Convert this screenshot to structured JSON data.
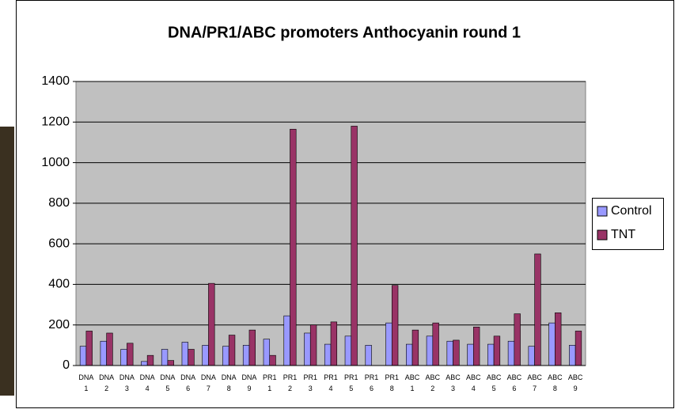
{
  "chart_data": {
    "type": "bar",
    "title": "DNA/PR1/ABC promoters Anthocyanin round 1",
    "categories": [
      "DNA 1",
      "DNA 2",
      "DNA 3",
      "DNA 4",
      "DNA 5",
      "DNA 6",
      "DNA 7",
      "DNA 8",
      "DNA 9",
      "PR1 1",
      "PR1 2",
      "PR1 3",
      "PR1 4",
      "PR1 5",
      "PR1 6",
      "PR1 8",
      "ABC 1",
      "ABC 2",
      "ABC 3",
      "ABC 4",
      "ABC 5",
      "ABC 6",
      "ABC 7",
      "ABC 8",
      "ABC 9"
    ],
    "series": [
      {
        "name": "Control",
        "color": "#9999ff",
        "values": [
          95,
          120,
          80,
          20,
          80,
          115,
          100,
          95,
          100,
          130,
          245,
          160,
          105,
          145,
          100,
          210,
          105,
          145,
          120,
          105,
          105,
          120,
          95,
          210,
          100
        ]
      },
      {
        "name": "TNT",
        "color": "#993366",
        "values": [
          170,
          160,
          110,
          50,
          25,
          80,
          405,
          150,
          175,
          50,
          1165,
          200,
          215,
          1180,
          0,
          395,
          175,
          210,
          125,
          190,
          145,
          255,
          550,
          260,
          170
        ]
      }
    ],
    "ylim": [
      0,
      1400
    ],
    "yticks": [
      0,
      200,
      400,
      600,
      800,
      1000,
      1200,
      1400
    ],
    "grid": true,
    "legend": "right"
  }
}
